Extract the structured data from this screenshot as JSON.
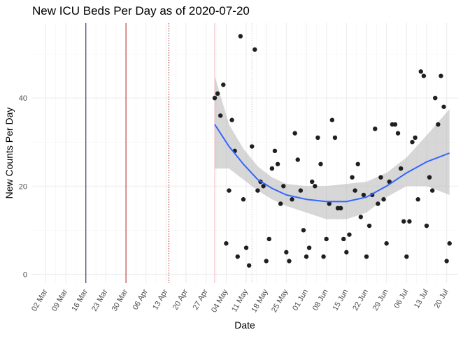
{
  "chart_data": {
    "type": "scatter",
    "title": "New ICU Beds Per Day as of 2020-07-20",
    "xlabel": "Date",
    "ylabel": "New Counts Per Day",
    "x_start": "2020-02-26",
    "x_end": "2020-07-24",
    "ylim": [
      -2,
      57
    ],
    "yticks": [
      0,
      20,
      40
    ],
    "xticks": [
      {
        "date": "2020-03-02",
        "label": "02 Mar"
      },
      {
        "date": "2020-03-09",
        "label": "09 Mar"
      },
      {
        "date": "2020-03-16",
        "label": "16 Mar"
      },
      {
        "date": "2020-03-23",
        "label": "23 Mar"
      },
      {
        "date": "2020-03-30",
        "label": "30 Mar"
      },
      {
        "date": "2020-04-06",
        "label": "06 Apr"
      },
      {
        "date": "2020-04-13",
        "label": "13 Apr"
      },
      {
        "date": "2020-04-20",
        "label": "20 Apr"
      },
      {
        "date": "2020-04-27",
        "label": "27 Apr"
      },
      {
        "date": "2020-05-04",
        "label": "04 May"
      },
      {
        "date": "2020-05-11",
        "label": "11 May"
      },
      {
        "date": "2020-05-18",
        "label": "18 May"
      },
      {
        "date": "2020-05-25",
        "label": "25 May"
      },
      {
        "date": "2020-06-01",
        "label": "01 Jun"
      },
      {
        "date": "2020-06-08",
        "label": "08 Jun"
      },
      {
        "date": "2020-06-15",
        "label": "15 Jun"
      },
      {
        "date": "2020-06-22",
        "label": "22 Jun"
      },
      {
        "date": "2020-06-29",
        "label": "29 Jun"
      },
      {
        "date": "2020-07-06",
        "label": "06 Jul"
      },
      {
        "date": "2020-07-13",
        "label": "13 Jul"
      },
      {
        "date": "2020-07-20",
        "label": "20 Jul"
      }
    ],
    "grid": true,
    "vlines": [
      {
        "date": "2020-03-16",
        "color": "#1a1a5e",
        "style": "solid"
      },
      {
        "date": "2020-03-30",
        "color": "#b22222",
        "style": "solid"
      },
      {
        "date": "2020-04-14",
        "color": "#b22222",
        "style": "dotted"
      },
      {
        "date": "2020-04-30",
        "color": "#f4b8c0",
        "style": "solid"
      },
      {
        "date": "2020-05-13",
        "color": "#cccccc",
        "style": "dotted"
      }
    ],
    "points": [
      {
        "x": "2020-04-30",
        "y": 40
      },
      {
        "x": "2020-05-01",
        "y": 41
      },
      {
        "x": "2020-05-02",
        "y": 36
      },
      {
        "x": "2020-05-03",
        "y": 43
      },
      {
        "x": "2020-05-04",
        "y": 7
      },
      {
        "x": "2020-05-05",
        "y": 19
      },
      {
        "x": "2020-05-06",
        "y": 35
      },
      {
        "x": "2020-05-07",
        "y": 28
      },
      {
        "x": "2020-05-08",
        "y": 4
      },
      {
        "x": "2020-05-09",
        "y": 54
      },
      {
        "x": "2020-05-10",
        "y": 17
      },
      {
        "x": "2020-05-11",
        "y": 6
      },
      {
        "x": "2020-05-12",
        "y": 2
      },
      {
        "x": "2020-05-13",
        "y": 29
      },
      {
        "x": "2020-05-14",
        "y": 51
      },
      {
        "x": "2020-05-15",
        "y": 19
      },
      {
        "x": "2020-05-16",
        "y": 21
      },
      {
        "x": "2020-05-17",
        "y": 20
      },
      {
        "x": "2020-05-18",
        "y": 3
      },
      {
        "x": "2020-05-19",
        "y": 8
      },
      {
        "x": "2020-05-20",
        "y": 24
      },
      {
        "x": "2020-05-21",
        "y": 28
      },
      {
        "x": "2020-05-22",
        "y": 25
      },
      {
        "x": "2020-05-23",
        "y": 16
      },
      {
        "x": "2020-05-24",
        "y": 20
      },
      {
        "x": "2020-05-25",
        "y": 5
      },
      {
        "x": "2020-05-26",
        "y": 3
      },
      {
        "x": "2020-05-27",
        "y": 17
      },
      {
        "x": "2020-05-28",
        "y": 32
      },
      {
        "x": "2020-05-29",
        "y": 26
      },
      {
        "x": "2020-05-30",
        "y": 19
      },
      {
        "x": "2020-05-31",
        "y": 10
      },
      {
        "x": "2020-06-01",
        "y": 4
      },
      {
        "x": "2020-06-02",
        "y": 6
      },
      {
        "x": "2020-06-03",
        "y": 21
      },
      {
        "x": "2020-06-04",
        "y": 20
      },
      {
        "x": "2020-06-05",
        "y": 31
      },
      {
        "x": "2020-06-06",
        "y": 25
      },
      {
        "x": "2020-06-07",
        "y": 4
      },
      {
        "x": "2020-06-08",
        "y": 8
      },
      {
        "x": "2020-06-09",
        "y": 16
      },
      {
        "x": "2020-06-10",
        "y": 35
      },
      {
        "x": "2020-06-11",
        "y": 31
      },
      {
        "x": "2020-06-12",
        "y": 15
      },
      {
        "x": "2020-06-13",
        "y": 15
      },
      {
        "x": "2020-06-14",
        "y": 8
      },
      {
        "x": "2020-06-15",
        "y": 5
      },
      {
        "x": "2020-06-16",
        "y": 9
      },
      {
        "x": "2020-06-17",
        "y": 22
      },
      {
        "x": "2020-06-18",
        "y": 19
      },
      {
        "x": "2020-06-19",
        "y": 25
      },
      {
        "x": "2020-06-20",
        "y": 13
      },
      {
        "x": "2020-06-21",
        "y": 18
      },
      {
        "x": "2020-06-22",
        "y": 4
      },
      {
        "x": "2020-06-23",
        "y": 11
      },
      {
        "x": "2020-06-24",
        "y": 18
      },
      {
        "x": "2020-06-25",
        "y": 33
      },
      {
        "x": "2020-06-26",
        "y": 16
      },
      {
        "x": "2020-06-27",
        "y": 22
      },
      {
        "x": "2020-06-28",
        "y": 17
      },
      {
        "x": "2020-06-29",
        "y": 7
      },
      {
        "x": "2020-06-30",
        "y": 21
      },
      {
        "x": "2020-07-01",
        "y": 34
      },
      {
        "x": "2020-07-02",
        "y": 34
      },
      {
        "x": "2020-07-03",
        "y": 32
      },
      {
        "x": "2020-07-04",
        "y": 24
      },
      {
        "x": "2020-07-05",
        "y": 12
      },
      {
        "x": "2020-07-06",
        "y": 4
      },
      {
        "x": "2020-07-07",
        "y": 12
      },
      {
        "x": "2020-07-08",
        "y": 30
      },
      {
        "x": "2020-07-09",
        "y": 31
      },
      {
        "x": "2020-07-10",
        "y": 17
      },
      {
        "x": "2020-07-11",
        "y": 46
      },
      {
        "x": "2020-07-12",
        "y": 45
      },
      {
        "x": "2020-07-13",
        "y": 11
      },
      {
        "x": "2020-07-14",
        "y": 22
      },
      {
        "x": "2020-07-15",
        "y": 19
      },
      {
        "x": "2020-07-16",
        "y": 40
      },
      {
        "x": "2020-07-17",
        "y": 34
      },
      {
        "x": "2020-07-18",
        "y": 45
      },
      {
        "x": "2020-07-19",
        "y": 38
      },
      {
        "x": "2020-07-20",
        "y": 3
      },
      {
        "x": "2020-07-21",
        "y": 7
      }
    ],
    "smooth": [
      {
        "x": "2020-04-30",
        "y": 34,
        "lo": 24,
        "hi": 45
      },
      {
        "x": "2020-05-05",
        "y": 29,
        "lo": 24,
        "hi": 34
      },
      {
        "x": "2020-05-10",
        "y": 25,
        "lo": 21.5,
        "hi": 28.5
      },
      {
        "x": "2020-05-15",
        "y": 21.5,
        "lo": 19,
        "hi": 24.5
      },
      {
        "x": "2020-05-20",
        "y": 19.5,
        "lo": 17,
        "hi": 22
      },
      {
        "x": "2020-05-25",
        "y": 18,
        "lo": 15.5,
        "hi": 20.5
      },
      {
        "x": "2020-06-01",
        "y": 17,
        "lo": 14,
        "hi": 20
      },
      {
        "x": "2020-06-08",
        "y": 16.5,
        "lo": 12.5,
        "hi": 20
      },
      {
        "x": "2020-06-15",
        "y": 16.5,
        "lo": 12.5,
        "hi": 20.5
      },
      {
        "x": "2020-06-22",
        "y": 17.5,
        "lo": 14,
        "hi": 21
      },
      {
        "x": "2020-06-29",
        "y": 20,
        "lo": 17.5,
        "hi": 23
      },
      {
        "x": "2020-07-06",
        "y": 23,
        "lo": 20,
        "hi": 26.5
      },
      {
        "x": "2020-07-13",
        "y": 25.5,
        "lo": 20,
        "hi": 31.5
      },
      {
        "x": "2020-07-21",
        "y": 27.5,
        "lo": 18,
        "hi": 37.5
      }
    ],
    "colors": {
      "points": "#1f1f1f",
      "smooth_line": "#3366ff",
      "band": "#bdbdbd",
      "grid": "#ebebeb"
    }
  }
}
